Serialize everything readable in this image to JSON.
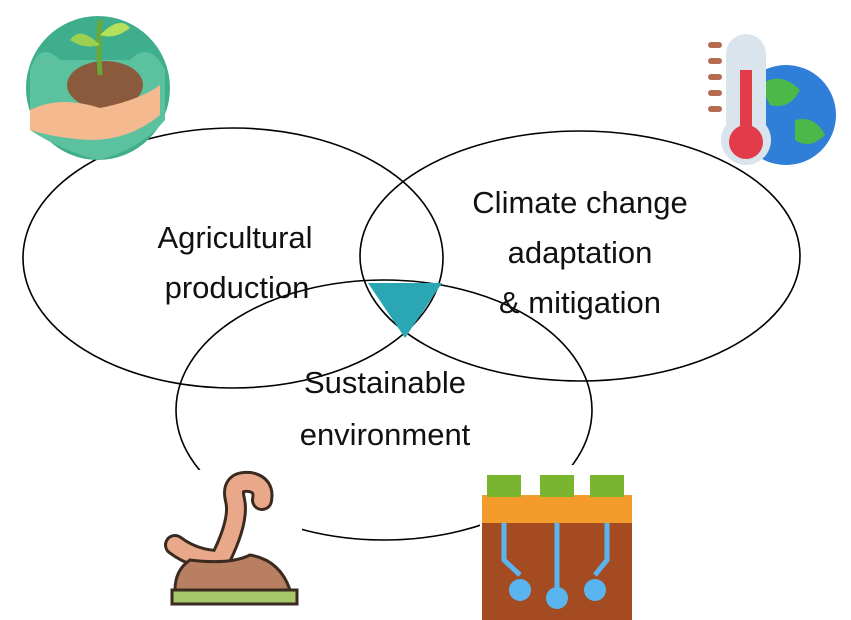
{
  "venn": {
    "sets": [
      {
        "lines": [
          "Agricultural",
          "production"
        ]
      },
      {
        "lines": [
          "Climate change",
          "adaptation",
          "& mitigation"
        ]
      },
      {
        "lines": [
          "Sustainable",
          "environment"
        ]
      }
    ]
  }
}
